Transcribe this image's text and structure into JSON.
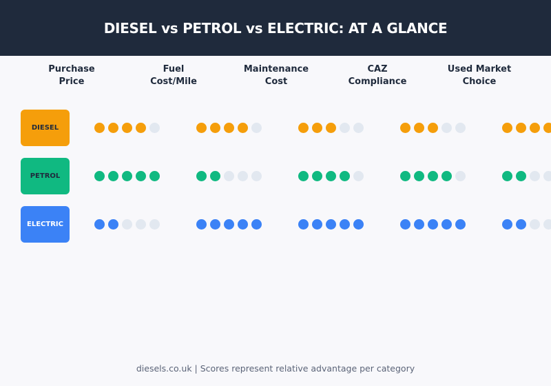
{
  "title": "DIESEL vs PETROL vs ELECTRIC: AT A GLANCE",
  "footer": "diesels.co.uk  |  Scores represent relative advantage per category",
  "colors": {
    "header_bg": "#1f2a3c",
    "empty_dot": "#e2e8f0",
    "diesel": "#f59e0b",
    "petrol": "#10b981",
    "electric": "#3b82f6",
    "diesel_text": "#1f2a3c",
    "petrol_text": "#1f2a3c",
    "electric_text": "#ffffff"
  },
  "chart_data": {
    "type": "table",
    "max_score": 5,
    "categories": [
      "Purchase\nPrice",
      "Fuel\nCost/Mile",
      "Maintenance\nCost",
      "CAZ\nCompliance",
      "Used Market\nChoice"
    ],
    "series": [
      {
        "name": "DIESEL",
        "color": "#f59e0b",
        "label_color": "#1f2a3c",
        "values": [
          4,
          4,
          3,
          3,
          4
        ]
      },
      {
        "name": "PETROL",
        "color": "#10b981",
        "label_color": "#1f2a3c",
        "values": [
          5,
          2,
          4,
          4,
          2
        ]
      },
      {
        "name": "ELECTRIC",
        "color": "#3b82f6",
        "label_color": "#ffffff",
        "values": [
          2,
          5,
          5,
          5,
          2
        ]
      }
    ]
  }
}
